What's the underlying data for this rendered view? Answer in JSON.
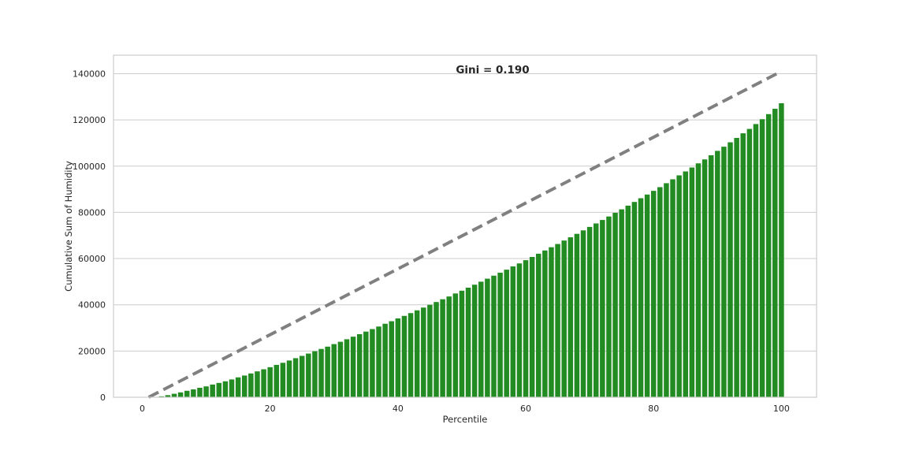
{
  "chart_data": {
    "type": "bar",
    "title": "",
    "annotation": "Gini = 0.190",
    "xlabel": "Percentile",
    "ylabel": "Cumulative Sum of Humidity",
    "xlim": [
      -4.5,
      105.5
    ],
    "ylim": [
      0,
      148000
    ],
    "x_ticks": [
      0,
      20,
      40,
      60,
      80,
      100
    ],
    "x_tick_labels": [
      "0",
      "20",
      "40",
      "60",
      "80",
      "100"
    ],
    "y_ticks": [
      0,
      20000,
      40000,
      60000,
      80000,
      100000,
      120000,
      140000
    ],
    "y_tick_labels": [
      "0",
      "20000",
      "40000",
      "60000",
      "80000",
      "100000",
      "120000",
      "140000"
    ],
    "grid": "horizontal",
    "bar_color": "#228b22",
    "equality_line": {
      "style": "dashed",
      "color": "#808080",
      "from": [
        1,
        0
      ],
      "to": [
        100,
        141000
      ]
    },
    "series": [
      {
        "x": [
          1,
          2,
          3,
          4,
          5,
          6,
          7,
          8,
          9,
          10,
          11,
          12,
          13,
          14,
          15,
          16,
          17,
          18,
          19,
          20,
          21,
          22,
          23,
          24,
          25,
          26,
          27,
          28,
          29,
          30,
          31,
          32,
          33,
          34,
          35,
          36,
          37,
          38,
          39,
          40,
          41,
          42,
          43,
          44,
          45,
          46,
          47,
          48,
          49,
          50,
          51,
          52,
          53,
          54,
          55,
          56,
          57,
          58,
          59,
          60,
          61,
          62,
          63,
          64,
          65,
          66,
          67,
          68,
          69,
          70,
          71,
          72,
          73,
          74,
          75,
          76,
          77,
          78,
          79,
          80,
          81,
          82,
          83,
          84,
          85,
          86,
          87,
          88,
          89,
          90,
          91,
          92,
          93,
          94,
          95,
          96,
          97,
          98,
          99,
          100
        ],
        "values": [
          0,
          100,
          400,
          900,
          1500,
          2100,
          2800,
          3400,
          4100,
          4700,
          5500,
          6200,
          6900,
          7700,
          8600,
          9400,
          10300,
          11200,
          12100,
          13000,
          14000,
          14900,
          15900,
          16900,
          17900,
          18900,
          19900,
          20900,
          21900,
          23000,
          24000,
          25100,
          26200,
          27300,
          28400,
          29500,
          30600,
          31800,
          32900,
          34100,
          35200,
          36400,
          37600,
          38800,
          40000,
          41200,
          42400,
          43600,
          44900,
          46100,
          47400,
          48700,
          50000,
          51300,
          52600,
          53900,
          55200,
          56600,
          57900,
          59300,
          60700,
          62100,
          63500,
          64900,
          66300,
          67800,
          69200,
          70700,
          72200,
          73700,
          75200,
          76700,
          78200,
          79800,
          81300,
          82900,
          84500,
          86100,
          87700,
          89300,
          90900,
          92600,
          94300,
          96000,
          97700,
          99400,
          101200,
          102900,
          104700,
          106600,
          108400,
          110300,
          112200,
          114200,
          116100,
          118200,
          120300,
          122500,
          124800,
          127200
        ]
      }
    ]
  }
}
